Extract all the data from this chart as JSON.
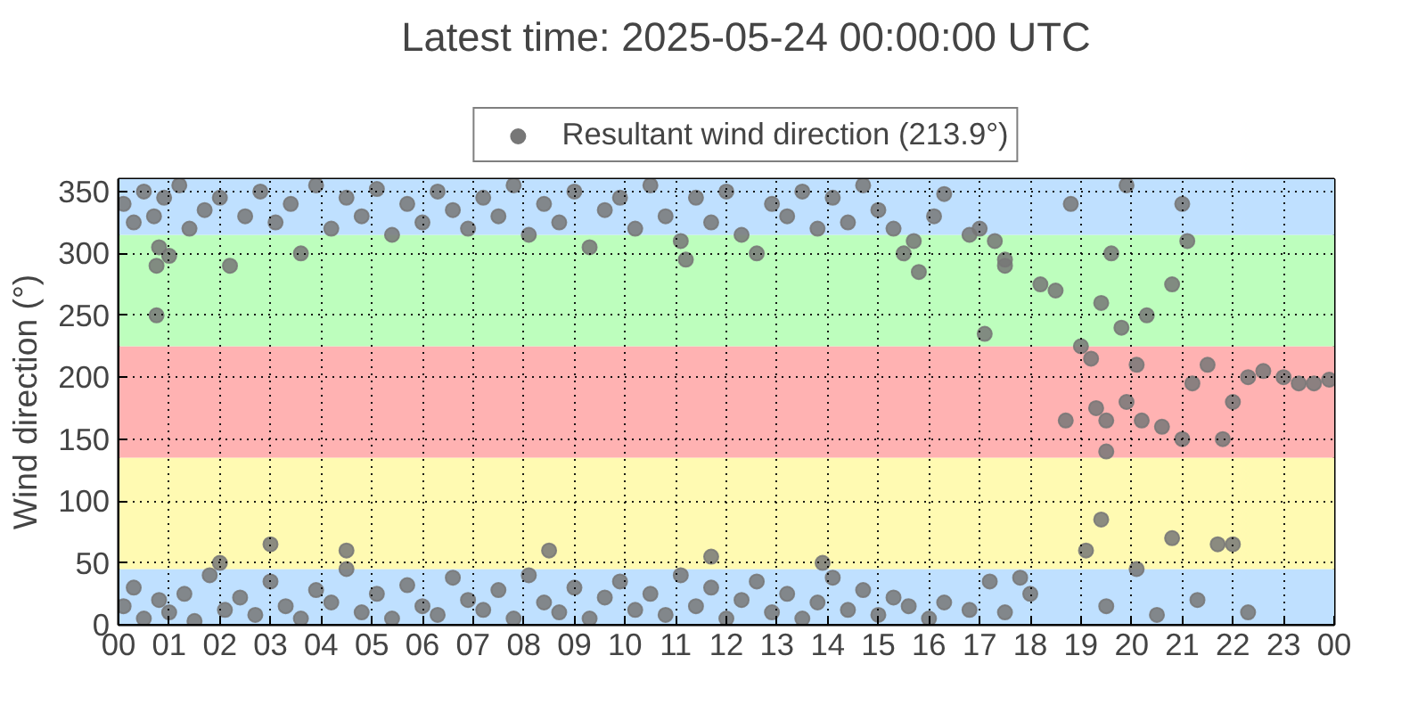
{
  "chart_data": {
    "type": "scatter",
    "title": "Latest time: 2025-05-24 00:00:00 UTC",
    "ylabel": "Wind direction (°)",
    "xlim": [
      0,
      24
    ],
    "ylim": [
      0,
      360
    ],
    "xticks": [
      {
        "value": 0,
        "label": "00"
      },
      {
        "value": 1,
        "label": "01"
      },
      {
        "value": 2,
        "label": "02"
      },
      {
        "value": 3,
        "label": "03"
      },
      {
        "value": 4,
        "label": "04"
      },
      {
        "value": 5,
        "label": "05"
      },
      {
        "value": 6,
        "label": "06"
      },
      {
        "value": 7,
        "label": "07"
      },
      {
        "value": 8,
        "label": "08"
      },
      {
        "value": 9,
        "label": "09"
      },
      {
        "value": 10,
        "label": "10"
      },
      {
        "value": 11,
        "label": "11"
      },
      {
        "value": 12,
        "label": "12"
      },
      {
        "value": 13,
        "label": "13"
      },
      {
        "value": 14,
        "label": "14"
      },
      {
        "value": 15,
        "label": "15"
      },
      {
        "value": 16,
        "label": "16"
      },
      {
        "value": 17,
        "label": "17"
      },
      {
        "value": 18,
        "label": "18"
      },
      {
        "value": 19,
        "label": "19"
      },
      {
        "value": 20,
        "label": "20"
      },
      {
        "value": 21,
        "label": "21"
      },
      {
        "value": 22,
        "label": "22"
      },
      {
        "value": 23,
        "label": "23"
      },
      {
        "value": 24,
        "label": "00"
      }
    ],
    "yticks": [
      0,
      50,
      100,
      150,
      200,
      250,
      300,
      350
    ],
    "grid": true,
    "legend": "top",
    "marker": "circle",
    "bands": [
      {
        "axis": "y",
        "from": 0,
        "to": 45,
        "color": "#bfe0ff"
      },
      {
        "axis": "y",
        "from": 45,
        "to": 135,
        "color": "#fffab2"
      },
      {
        "axis": "y",
        "from": 135,
        "to": 225,
        "color": "#ffb2b2"
      },
      {
        "axis": "y",
        "from": 225,
        "to": 315,
        "color": "#bdfebd"
      },
      {
        "axis": "y",
        "from": 315,
        "to": 360,
        "color": "#bfe0ff"
      }
    ],
    "series": [
      {
        "name": "Resultant wind direction (213.9°)",
        "color": "#777777",
        "x": [
          0.1,
          0.3,
          0.5,
          0.7,
          0.9,
          1.0,
          1.2,
          1.4,
          1.7,
          2.0,
          2.2,
          2.5,
          2.8,
          3.1,
          3.4,
          3.6,
          3.9,
          4.2,
          4.5,
          4.8,
          5.1,
          5.4,
          5.7,
          6.0,
          6.3,
          6.6,
          6.9,
          7.2,
          7.5,
          7.8,
          8.1,
          8.4,
          8.7,
          9.0,
          9.3,
          9.6,
          9.9,
          10.2,
          10.5,
          10.8,
          11.1,
          11.4,
          11.7,
          12.0,
          12.3,
          12.6,
          12.9,
          13.2,
          13.5,
          13.8,
          14.1,
          14.4,
          14.7,
          15.0,
          15.3,
          15.5,
          15.7,
          16.1,
          16.3,
          16.8,
          17.0,
          0.75,
          0.75,
          0.8,
          11.2,
          15.8,
          0.1,
          0.3,
          0.5,
          0.8,
          1.0,
          1.3,
          1.5,
          1.8,
          2.1,
          2.4,
          2.7,
          3.0,
          3.3,
          3.6,
          3.9,
          4.2,
          4.5,
          4.8,
          5.1,
          5.4,
          5.7,
          6.0,
          6.3,
          6.6,
          6.9,
          7.2,
          7.5,
          7.8,
          8.1,
          8.4,
          8.7,
          9.0,
          9.3,
          9.6,
          9.9,
          10.2,
          10.5,
          10.8,
          11.1,
          11.4,
          11.7,
          12.0,
          12.3,
          12.6,
          12.9,
          13.2,
          13.5,
          13.8,
          14.1,
          14.4,
          14.7,
          15.0,
          15.3,
          15.6,
          16.0,
          16.3,
          16.8,
          17.2,
          17.5,
          3.0,
          4.5,
          2.0,
          11.7,
          8.5,
          13.9,
          17.1,
          17.3,
          17.5,
          17.5,
          18.2,
          18.5,
          19.0,
          19.2,
          19.3,
          19.4,
          19.5,
          19.6,
          19.8,
          19.9,
          20.1,
          20.2,
          20.3,
          20.6,
          20.8,
          21.0,
          21.2,
          21.5,
          21.8,
          22.0,
          22.3,
          22.6,
          23.0,
          23.3,
          23.6,
          23.9,
          18.7,
          19.5,
          18.8,
          19.9,
          21.0,
          21.1,
          19.1,
          19.4,
          20.1,
          20.8,
          21.7,
          22.0,
          18.0,
          19.5,
          20.5,
          21.3,
          22.3,
          17.8
        ],
        "values": [
          340,
          325,
          350,
          330,
          345,
          298,
          355,
          320,
          335,
          345,
          290,
          330,
          350,
          325,
          340,
          300,
          355,
          320,
          345,
          330,
          352,
          315,
          340,
          325,
          350,
          335,
          320,
          345,
          330,
          355,
          315,
          340,
          325,
          350,
          305,
          335,
          345,
          320,
          355,
          330,
          310,
          345,
          325,
          350,
          315,
          300,
          340,
          330,
          350,
          320,
          345,
          325,
          355,
          335,
          320,
          300,
          310,
          330,
          348,
          315,
          320,
          250,
          290,
          305,
          295,
          285,
          15,
          30,
          5,
          20,
          10,
          25,
          3,
          40,
          12,
          22,
          8,
          35,
          15,
          5,
          28,
          18,
          45,
          10,
          25,
          5,
          32,
          15,
          8,
          38,
          20,
          12,
          28,
          5,
          40,
          18,
          10,
          30,
          5,
          22,
          35,
          12,
          25,
          8,
          40,
          15,
          30,
          5,
          20,
          35,
          10,
          25,
          5,
          18,
          38,
          12,
          28,
          8,
          22,
          15,
          5,
          18,
          12,
          35,
          10,
          65,
          60,
          50,
          55,
          60,
          50,
          235,
          310,
          290,
          295,
          275,
          270,
          225,
          215,
          175,
          260,
          165,
          300,
          240,
          180,
          210,
          165,
          250,
          160,
          275,
          150,
          195,
          210,
          150,
          180,
          200,
          205,
          200,
          195,
          195,
          198,
          165,
          140,
          340,
          355,
          340,
          310,
          60,
          85,
          45,
          70,
          65,
          65,
          25,
          15,
          8,
          20,
          10,
          38
        ]
      }
    ]
  }
}
